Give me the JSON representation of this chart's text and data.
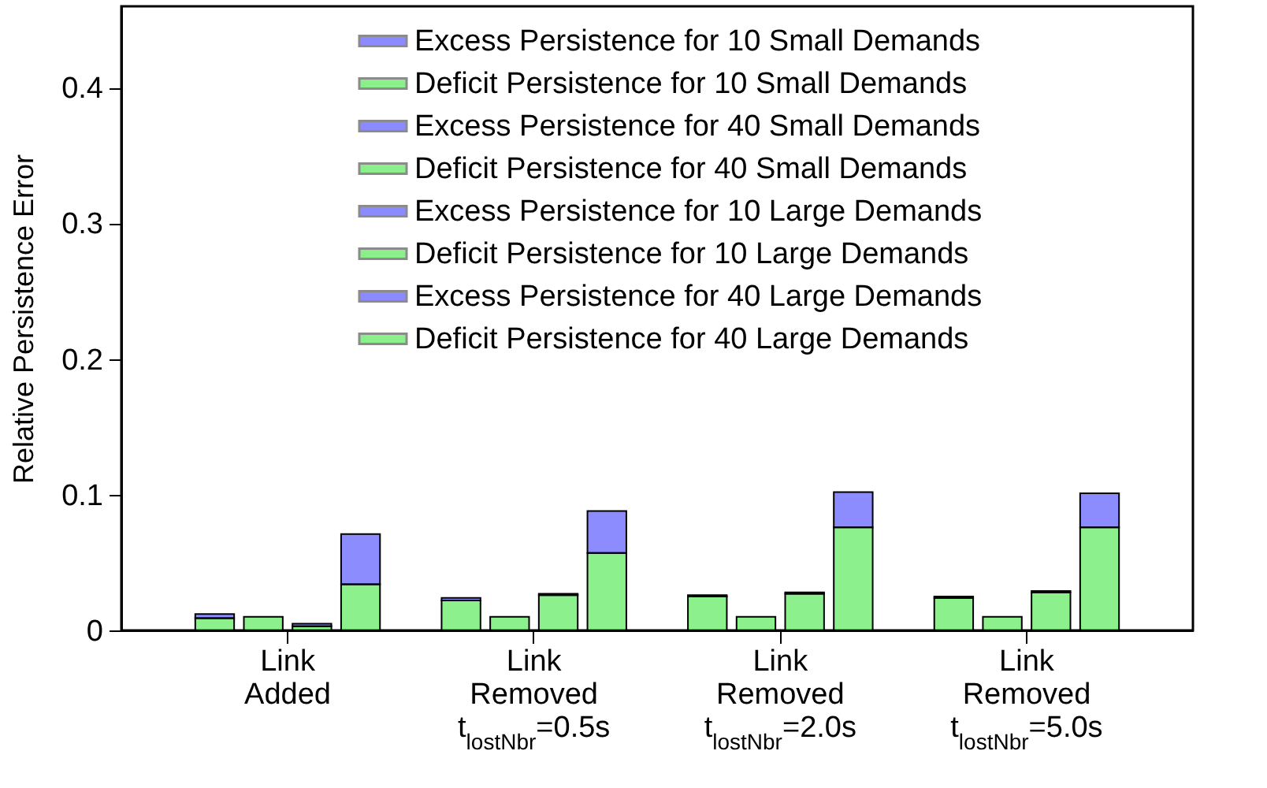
{
  "chart_data": {
    "type": "bar",
    "ylabel": "Relative Persistence Error",
    "categories": [
      "Link\nAdded",
      "Link\nRemoved\nt$_{lostNbr}$=0.5s",
      "Link\nRemoved\nt$_{lostNbr}$=2.0s",
      "Link\nRemoved\nt$_{lostNbr}$=5.0s"
    ],
    "series": [
      {
        "name": "Deficit  Persistence for 10 Small Demands",
        "color": "#00dd00",
        "values": [
          0.009,
          0.022,
          0.025,
          0.024
        ]
      },
      {
        "name": "Excess Persistence for 10 Small Demands",
        "color": "#0000ff",
        "values": [
          0.003,
          0.002,
          0.001,
          0.001
        ],
        "base": [
          0.009,
          0.022,
          0.025,
          0.024
        ]
      },
      {
        "name": "Deficit  Persistence for 40 Small Demands",
        "color": "#00dd00",
        "values": [
          0.01,
          0.01,
          0.01,
          0.01
        ]
      },
      {
        "name": "Excess Persistence for 40 Small Demands",
        "color": "#0000ff",
        "values": [
          null,
          null,
          null,
          null
        ]
      },
      {
        "name": "Deficit  Persistence for 10 Large Demands",
        "color": "#00dd00",
        "values": [
          0.003,
          0.026,
          0.027,
          0.028
        ]
      },
      {
        "name": "Excess Persistence for 10 Large Demands",
        "color": "#0000ff",
        "values": [
          0.002,
          0.001,
          0.001,
          0.001
        ],
        "base": [
          0.003,
          0.026,
          0.027,
          0.028
        ]
      },
      {
        "name": "Deficit  Persistence for 40 Large Demands",
        "color": "#00dd00",
        "values": [
          0.034,
          0.057,
          0.076,
          0.076
        ]
      },
      {
        "name": "Excess Persistence for 40 Large Demands",
        "color": "#0000ff",
        "values": [
          0.037,
          0.031,
          0.026,
          0.025
        ],
        "base": [
          0.034,
          0.057,
          0.076,
          0.076
        ]
      }
    ],
    "ylim": [
      0,
      0.46
    ],
    "yticks": [
      {
        "value": 0,
        "label": "0"
      },
      0.1,
      0.2,
      0.3,
      0.4
    ],
    "grid": false,
    "legend": "top left"
  }
}
